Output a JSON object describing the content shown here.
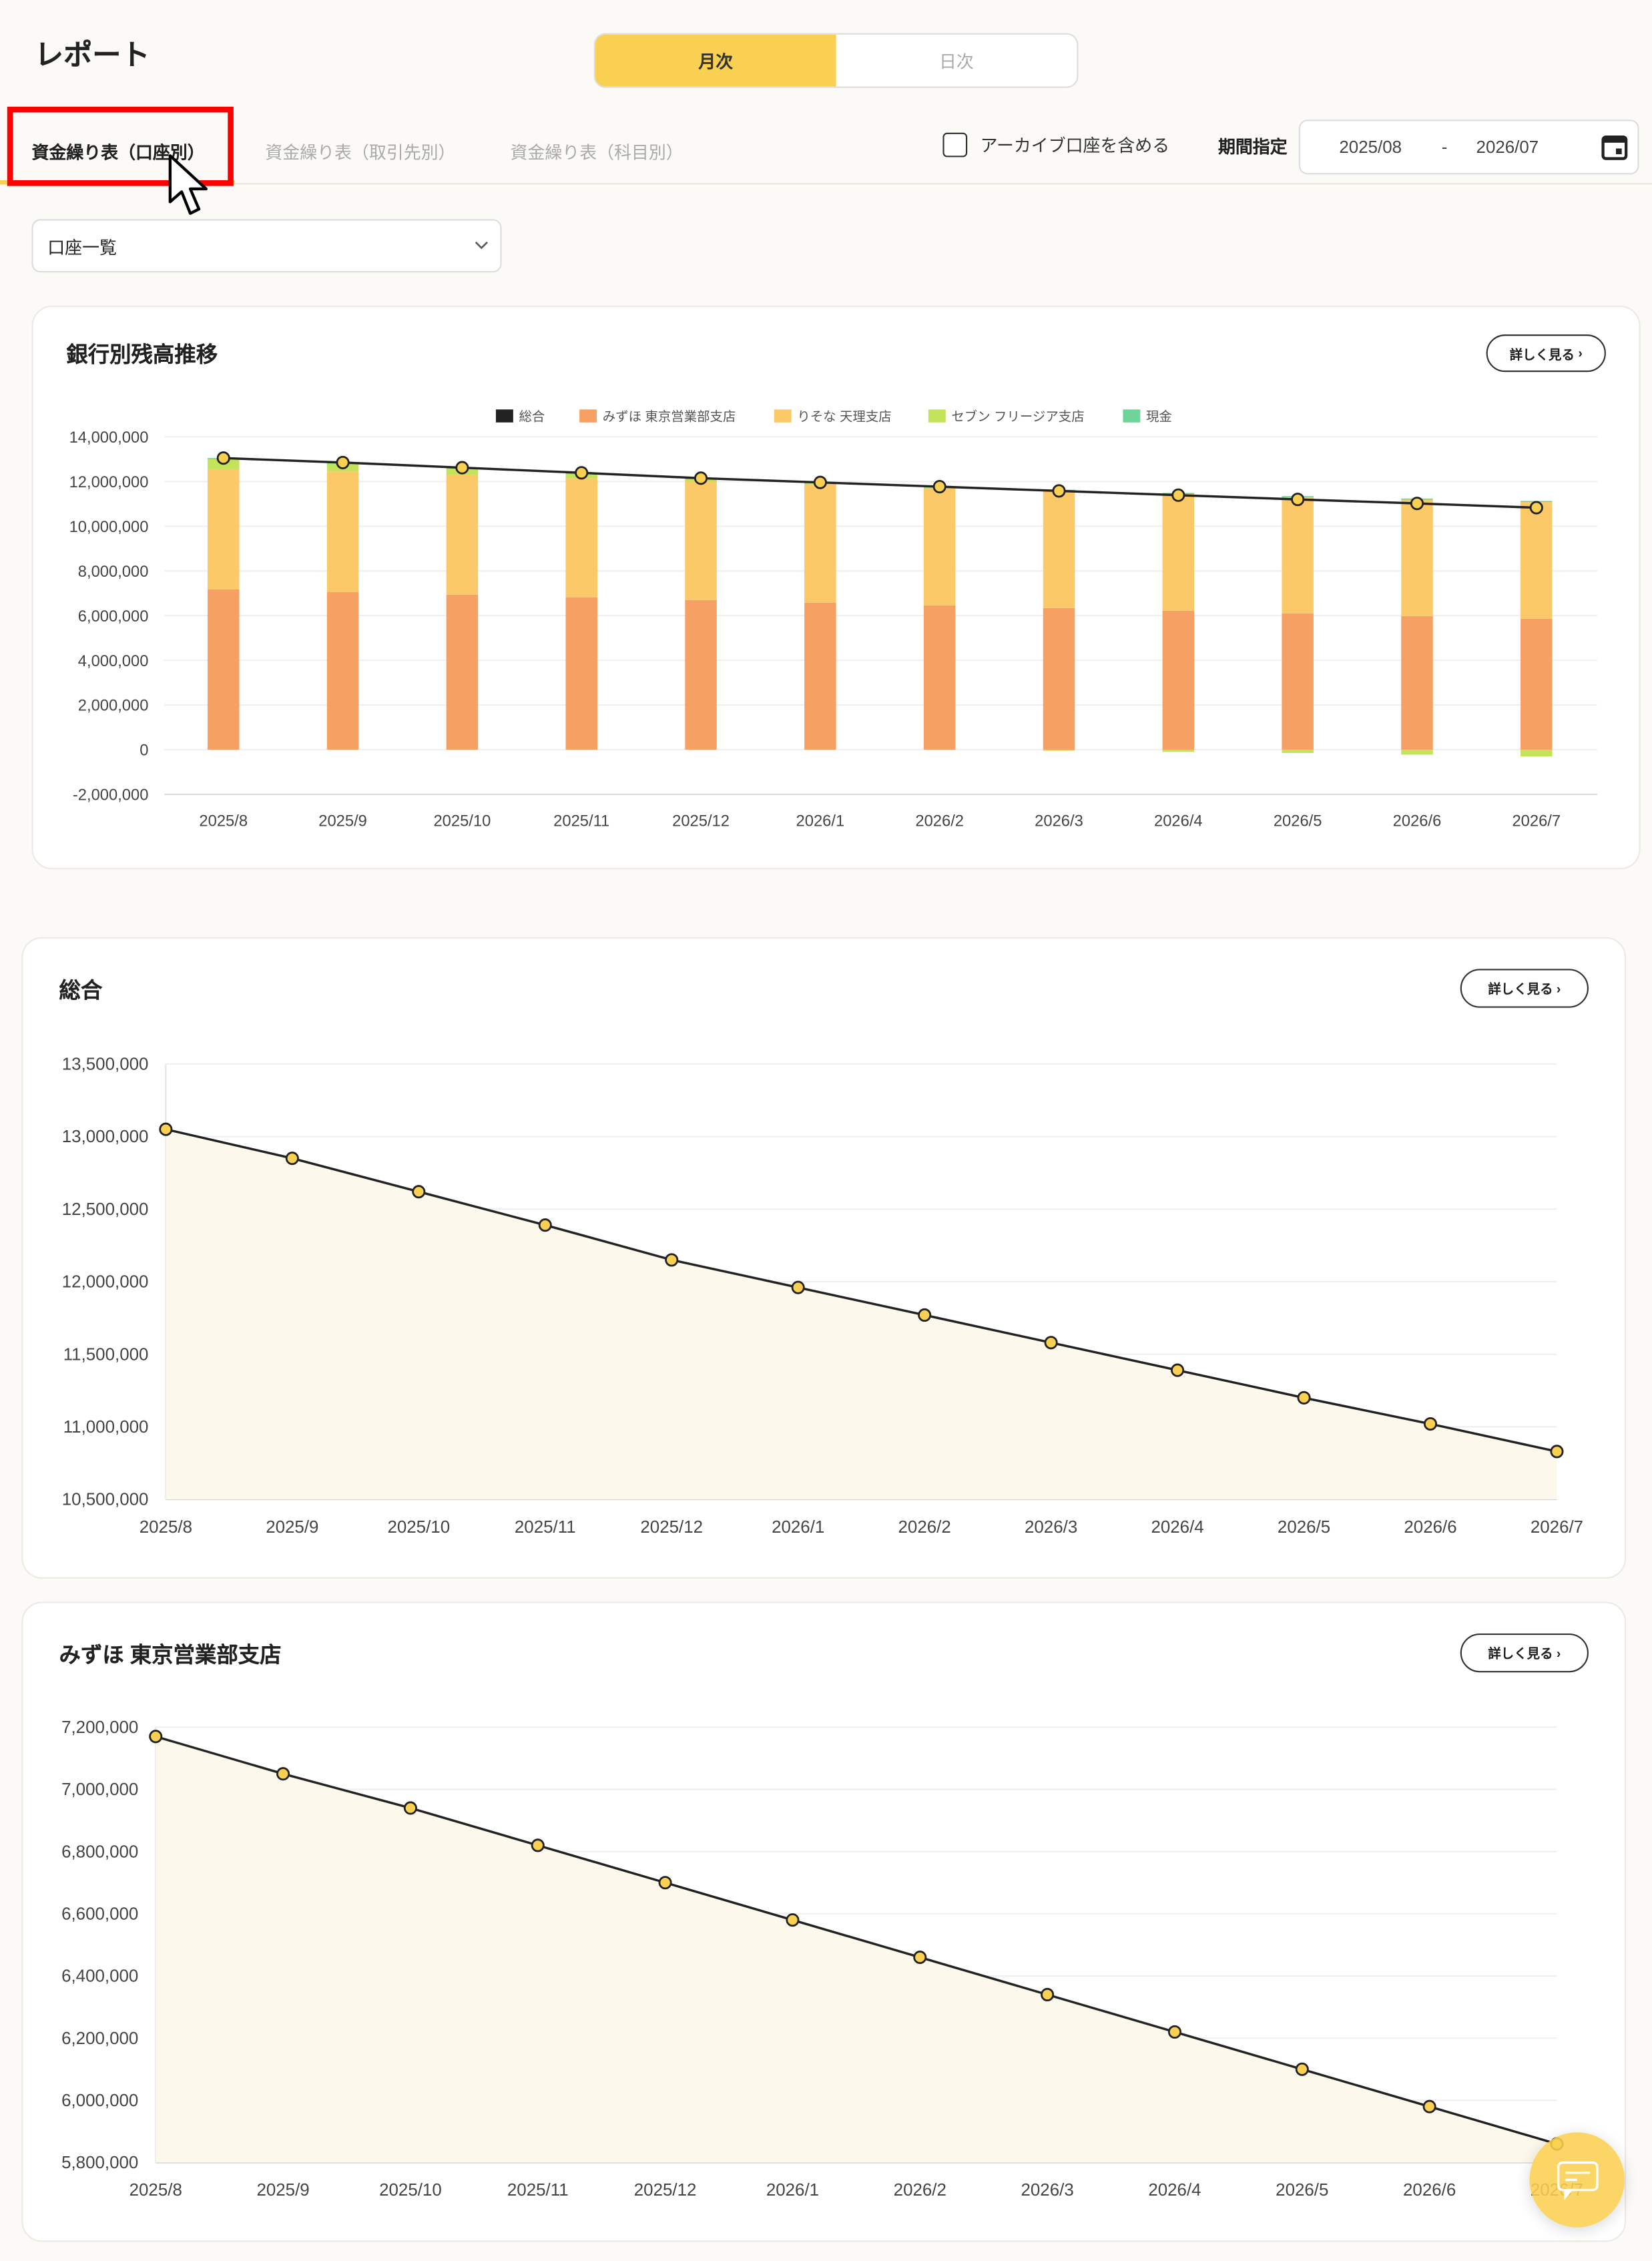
{
  "header": {
    "title": "レポート",
    "toggle": [
      {
        "label": "月次",
        "active": true
      },
      {
        "label": "日次",
        "active": false
      }
    ]
  },
  "tabs": [
    {
      "label": "資金繰り表（口座別）",
      "active": true
    },
    {
      "label": "資金繰り表（取引先別）",
      "active": false
    },
    {
      "label": "資金繰り表（科目別）",
      "active": false
    }
  ],
  "filters": {
    "archive_label": "アーカイブ口座を含める",
    "archive_checked": false,
    "period_label": "期間指定",
    "date_from": "2025/08",
    "date_sep": "-",
    "date_to": "2026/07",
    "account_select": "口座一覧"
  },
  "detail_label": "詳しく見る",
  "colors": {
    "accent": "#FAD052",
    "total": "#222222",
    "mizuho": "#F7A064",
    "resona": "#FCC968",
    "seven": "#C3E35A",
    "cash": "#6FD49A"
  },
  "chart_data": [
    {
      "type": "bar",
      "stacked": true,
      "title": "銀行別残高推移",
      "legend_position": "top",
      "categories": [
        "2025/8",
        "2025/9",
        "2025/10",
        "2025/11",
        "2025/12",
        "2026/1",
        "2026/2",
        "2026/3",
        "2026/4",
        "2026/5",
        "2026/6",
        "2026/7"
      ],
      "yticks": [
        "14,000,000",
        "12,000,000",
        "10,000,000",
        "8,000,000",
        "6,000,000",
        "4,000,000",
        "2,000,000",
        "0",
        "-2,000,000"
      ],
      "ylim": [
        -2000000,
        14000000
      ],
      "grid": true,
      "series": [
        {
          "name": "総合",
          "type": "line",
          "values": [
            13050000,
            12850000,
            12620000,
            12390000,
            12150000,
            11960000,
            11770000,
            11580000,
            11390000,
            11200000,
            11020000,
            10830000
          ]
        },
        {
          "name": "みずほ 東京営業部支店",
          "values": [
            7170000,
            7050000,
            6940000,
            6820000,
            6700000,
            6580000,
            6460000,
            6340000,
            6220000,
            6100000,
            5980000,
            5860000
          ]
        },
        {
          "name": "りそな 天理支店",
          "values": [
            5380000,
            5400000,
            5350000,
            5320000,
            5280000,
            5280000,
            5260000,
            5240000,
            5220000,
            5200000,
            5210000,
            5220000
          ]
        },
        {
          "name": "セブン フリージア支店",
          "values": [
            450000,
            350000,
            280000,
            200000,
            120000,
            50000,
            0,
            -50000,
            -100000,
            -150000,
            -220000,
            -300000
          ]
        },
        {
          "name": "現金",
          "values": [
            50000,
            50000,
            50000,
            50000,
            50000,
            50000,
            50000,
            50000,
            50000,
            50000,
            50000,
            50000
          ]
        }
      ]
    },
    {
      "type": "area",
      "title": "総合",
      "categories": [
        "2025/8",
        "2025/9",
        "2025/10",
        "2025/11",
        "2025/12",
        "2026/1",
        "2026/2",
        "2026/3",
        "2026/4",
        "2026/5",
        "2026/6",
        "2026/7"
      ],
      "yticks": [
        "13,500,000",
        "13,000,000",
        "12,500,000",
        "12,000,000",
        "11,500,000",
        "11,000,000",
        "10,500,000"
      ],
      "ylim": [
        10500000,
        13500000
      ],
      "grid": true,
      "values": [
        13050000,
        12850000,
        12620000,
        12390000,
        12150000,
        11960000,
        11770000,
        11580000,
        11390000,
        11200000,
        11020000,
        10830000
      ]
    },
    {
      "type": "area",
      "title": "みずほ 東京営業部支店",
      "categories": [
        "2025/8",
        "2025/9",
        "2025/10",
        "2025/11",
        "2025/12",
        "2026/1",
        "2026/2",
        "2026/3",
        "2026/4",
        "2026/5",
        "2026/6",
        "2026/7"
      ],
      "yticks": [
        "7,200,000",
        "7,000,000",
        "6,800,000",
        "6,600,000",
        "6,400,000",
        "6,200,000",
        "6,000,000",
        "5,800,000"
      ],
      "ylim": [
        5800000,
        7200000
      ],
      "grid": true,
      "values": [
        7170000,
        7050000,
        6940000,
        6820000,
        6700000,
        6580000,
        6460000,
        6340000,
        6220000,
        6100000,
        5980000,
        5860000
      ]
    }
  ]
}
